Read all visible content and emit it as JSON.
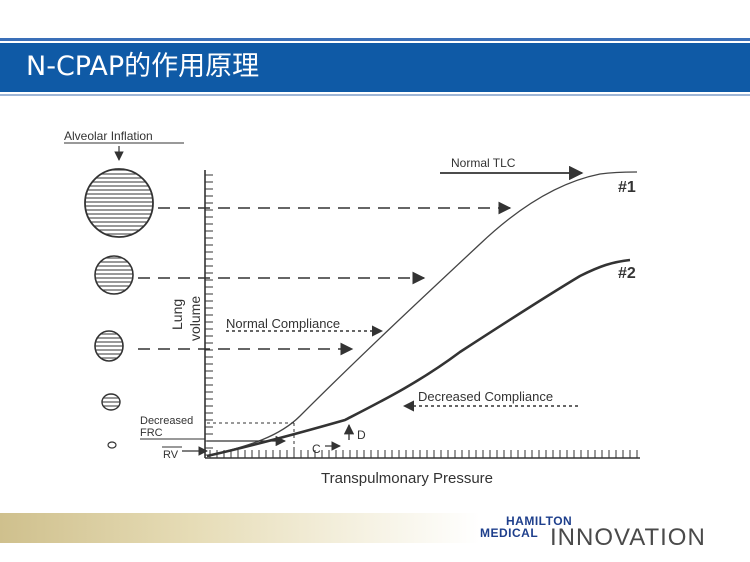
{
  "slide": {
    "title": "N-CPAP的作用原理"
  },
  "figure": {
    "alveolar_inflation_label": "Alveolar Inflation",
    "normal_tlc_label": "Normal TLC",
    "curve1_label": "#1",
    "curve2_label": "#2",
    "y_axis_label_line1": "Lung",
    "y_axis_label_line2": "volume",
    "normal_compliance_label": "Normal Compliance",
    "decreased_compliance_label": "Decreased Compliance",
    "decreased_frc_line1": "Decreased",
    "decreased_frc_line2": "FRC",
    "rv_label": "RV",
    "point_c_label": "C",
    "point_d_label": "D",
    "x_axis_label": "Transpulmonary Pressure"
  },
  "logo": {
    "brand_line1": "HAMILTON",
    "brand_line2": "MEDICAL",
    "tagline": "INNOVATION"
  },
  "colors": {
    "title_bar": "#0f5aa6",
    "ink": "#333333",
    "brand": "#1e3f8c"
  }
}
